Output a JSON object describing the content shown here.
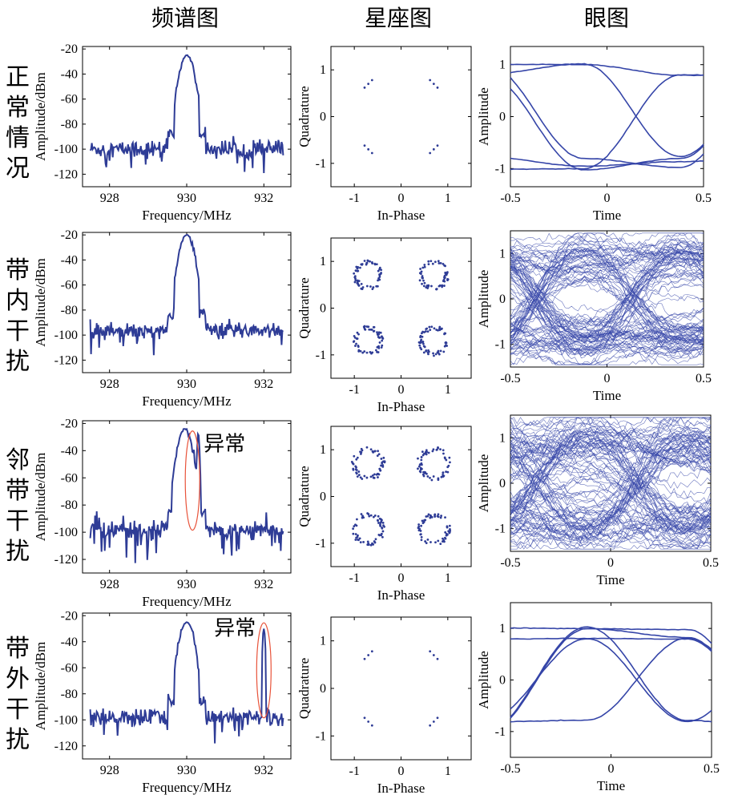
{
  "column_titles": [
    "频谱图",
    "星座图",
    "眼图"
  ],
  "row_labels": [
    "正常情况",
    "带内干扰",
    "邻带干扰",
    "带外干扰"
  ],
  "colors": {
    "trace": "#2e3c96",
    "eye": "#3545a8",
    "highlight": "#e8533a"
  },
  "chart_data": [
    {
      "id": "spectrum-normal",
      "type": "line",
      "xlabel": "Frequency/MHz",
      "ylabel": "Amplitude/dBm",
      "xlim": [
        927.3,
        932.7
      ],
      "ylim": [
        -130,
        -18
      ],
      "xticks": [
        928,
        930,
        932
      ],
      "yticks": [
        -20,
        -40,
        -60,
        -80,
        -100,
        -120
      ],
      "series": [
        {
          "peaks": [
            {
              "f": 930.0,
              "level": -25
            }
          ],
          "noise_floor": -100
        }
      ]
    },
    {
      "id": "constellation-normal",
      "type": "scatter",
      "xlabel": "In-Phase",
      "ylabel": "Quadrature",
      "xlim": [
        -1.5,
        1.5
      ],
      "ylim": [
        -1.5,
        1.5
      ],
      "xticks": [
        -1,
        0,
        1
      ],
      "yticks": [
        1,
        0,
        -1
      ],
      "points_per_cluster": 3,
      "cluster_spread": 0.1
    },
    {
      "id": "eye-normal",
      "type": "line",
      "xlabel": "Time",
      "ylabel": "Amplitude",
      "xlim": [
        -0.5,
        0.5
      ],
      "ylim": [
        -1.35,
        1.35
      ],
      "xticks": [
        -0.5,
        0,
        0.5
      ],
      "yticks": [
        1,
        0,
        -1
      ],
      "eye_amplitudes": [
        0.8,
        1.0
      ],
      "traces": 6,
      "noise": 0.02
    },
    {
      "id": "spectrum-inband",
      "type": "line",
      "xlabel": "Frequency/MHz",
      "ylabel": "Amplitude/dBm",
      "xlim": [
        927.3,
        932.7
      ],
      "ylim": [
        -130,
        -18
      ],
      "xticks": [
        928,
        930,
        932
      ],
      "yticks": [
        -20,
        -40,
        -60,
        -80,
        -100,
        -120
      ],
      "series": [
        {
          "peaks": [
            {
              "f": 930.0,
              "level": -20
            }
          ],
          "noise_floor": -96
        }
      ]
    },
    {
      "id": "constellation-inband",
      "type": "scatter",
      "xlabel": "In-Phase",
      "ylabel": "Quadrature",
      "xlim": [
        -1.5,
        1.5
      ],
      "ylim": [
        -1.5,
        1.5
      ],
      "xticks": [
        -1,
        0,
        1
      ],
      "yticks": [
        1,
        0,
        -1
      ],
      "points_per_cluster": 60,
      "ring_radius": 0.27
    },
    {
      "id": "eye-inband",
      "type": "line",
      "xlabel": "Time",
      "ylabel": "Amplitude",
      "xlim": [
        -0.5,
        0.5
      ],
      "ylim": [
        -1.5,
        1.5
      ],
      "xticks": [
        -0.5,
        0,
        0.5
      ],
      "yticks": [
        1,
        0,
        -1
      ],
      "eye_amplitudes": [
        0.8,
        1.0
      ],
      "traces": 110,
      "noise": 0.28
    },
    {
      "id": "spectrum-adjacent",
      "type": "line",
      "xlabel": "Frequency/MHz",
      "ylabel": "Amplitude/dBm",
      "xlim": [
        927.3,
        932.7
      ],
      "ylim": [
        -130,
        -18
      ],
      "xticks": [
        928,
        930,
        932
      ],
      "yticks": [
        -20,
        -40,
        -60,
        -80,
        -100,
        -120
      ],
      "series": [
        {
          "peaks": [
            {
              "f": 929.95,
              "level": -24
            },
            {
              "f": 930.3,
              "level": -27
            }
          ],
          "noise_floor": -98
        }
      ],
      "annotation": {
        "text": "异常",
        "f": 930.15,
        "level": -62
      }
    },
    {
      "id": "constellation-adjacent",
      "type": "scatter",
      "xlabel": "In-Phase",
      "ylabel": "Quadrature",
      "xlim": [
        -1.5,
        1.5
      ],
      "ylim": [
        -1.5,
        1.5
      ],
      "xticks": [
        -1,
        0,
        1
      ],
      "yticks": [
        1,
        0,
        -1
      ],
      "points_per_cluster": 60,
      "ring_radius": 0.3
    },
    {
      "id": "eye-adjacent",
      "type": "line",
      "xlabel": "Time",
      "ylabel": "Amplitude",
      "xlim": [
        -0.5,
        0.5
      ],
      "ylim": [
        -1.5,
        1.5
      ],
      "xticks": [
        -0.5,
        0,
        0.5
      ],
      "yticks": [
        1,
        0,
        -1
      ],
      "eye_amplitudes": [
        0.8,
        1.0
      ],
      "traces": 110,
      "noise": 0.35
    },
    {
      "id": "spectrum-outband",
      "type": "line",
      "xlabel": "Frequency/MHz",
      "ylabel": "Amplitude/dBm",
      "xlim": [
        927.3,
        932.7
      ],
      "ylim": [
        -130,
        -18
      ],
      "xticks": [
        928,
        930,
        932
      ],
      "yticks": [
        -20,
        -40,
        -60,
        -80,
        -100,
        -120
      ],
      "series": [
        {
          "peaks": [
            {
              "f": 930.0,
              "level": -25
            },
            {
              "f": 932.0,
              "level": -30
            }
          ],
          "noise_floor": -98
        }
      ],
      "annotation": {
        "text": "异常",
        "f": 932.0,
        "level": -62
      }
    },
    {
      "id": "constellation-outband",
      "type": "scatter",
      "xlabel": "In-Phase",
      "ylabel": "Quadrature",
      "xlim": [
        -1.5,
        1.5
      ],
      "ylim": [
        -1.5,
        1.5
      ],
      "xticks": [
        -1,
        0,
        1
      ],
      "yticks": [
        1,
        0,
        -1
      ],
      "points_per_cluster": 3,
      "cluster_spread": 0.1
    },
    {
      "id": "eye-outband",
      "type": "line",
      "xlabel": "Time",
      "ylabel": "Amplitude",
      "xlim": [
        -0.5,
        0.5
      ],
      "ylim": [
        -1.5,
        1.5
      ],
      "xticks": [
        -0.5,
        0,
        0.5
      ],
      "yticks": [
        1,
        0,
        -1
      ],
      "eye_amplitudes": [
        0.8,
        1.0
      ],
      "traces": 6,
      "noise": 0.02
    }
  ]
}
